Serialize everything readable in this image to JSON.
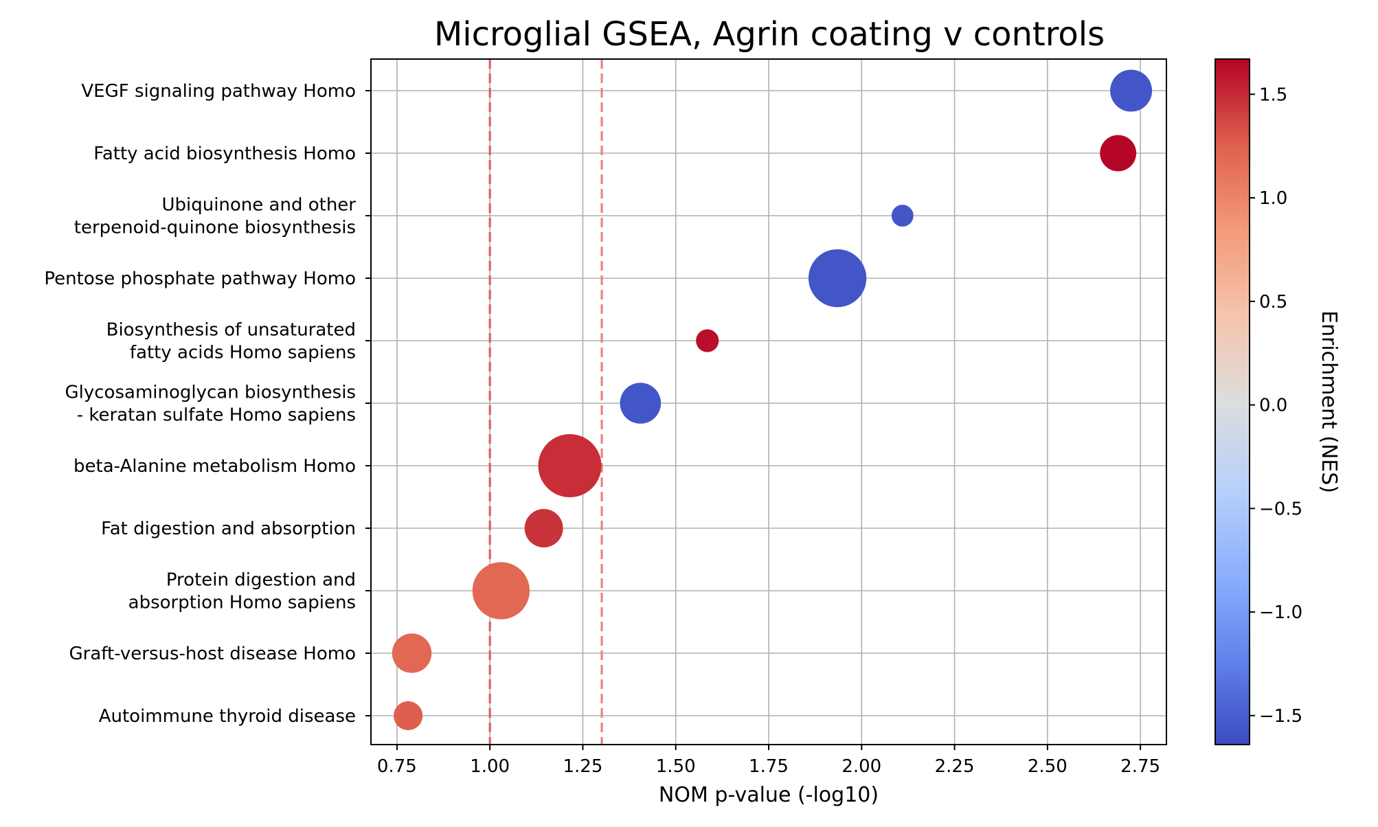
{
  "chart_data": {
    "type": "scatter",
    "title": "Microglial GSEA, Agrin coating v controls",
    "xlabel": "NOM p-value (-log10)",
    "ylabel": "",
    "xlim": [
      0.68,
      2.82
    ],
    "x_ticks": [
      "0.75",
      "1.00",
      "1.25",
      "1.50",
      "1.75",
      "2.00",
      "2.25",
      "2.50",
      "2.75"
    ],
    "grid": true,
    "categories": [
      [
        "VEGF signaling pathway Homo"
      ],
      [
        "Fatty acid biosynthesis Homo"
      ],
      [
        "Ubiquinone and other",
        "terpenoid-quinone biosynthesis"
      ],
      [
        "Pentose phosphate pathway Homo"
      ],
      [
        "Biosynthesis of unsaturated",
        "fatty acids Homo sapiens"
      ],
      [
        "Glycosaminoglycan biosynthesis",
        "- keratan sulfate Homo sapiens"
      ],
      [
        "beta-Alanine metabolism Homo"
      ],
      [
        "Fat digestion and absorption"
      ],
      [
        "Protein digestion and",
        "absorption Homo sapiens"
      ],
      [
        "Graft-versus-host disease Homo"
      ],
      [
        "Autoimmune thyroid disease"
      ]
    ],
    "x": [
      2.725,
      2.69,
      2.11,
      1.935,
      1.585,
      1.405,
      1.215,
      1.145,
      1.03,
      0.79,
      0.78
    ],
    "nes": [
      -1.56,
      1.66,
      -1.56,
      -1.56,
      1.62,
      -1.56,
      1.48,
      1.46,
      1.2,
      1.2,
      1.26
    ],
    "marker_size_relative": [
      0.44,
      0.33,
      0.12,
      0.84,
      0.13,
      0.42,
      1.0,
      0.37,
      0.82,
      0.39,
      0.21
    ],
    "reference_lines": [
      {
        "x": 1.0,
        "color": "#e06060",
        "style": "dashed"
      },
      {
        "x": 1.30103,
        "color": "#f08080",
        "style": "dashed"
      }
    ],
    "colorbar": {
      "label": "Enrichment (NES)",
      "colormap": "coolwarm",
      "range": [
        -1.64,
        1.67
      ],
      "ticks": [
        "−1.5",
        "−1.0",
        "−0.5",
        "0.0",
        "0.5",
        "1.0",
        "1.5"
      ],
      "tick_values": [
        -1.5,
        -1.0,
        -0.5,
        0.0,
        0.5,
        1.0,
        1.5
      ]
    },
    "colors": {
      "cool_end": "#3b4cc0",
      "neutral": "#dddddd",
      "warm_end": "#b40426"
    }
  }
}
